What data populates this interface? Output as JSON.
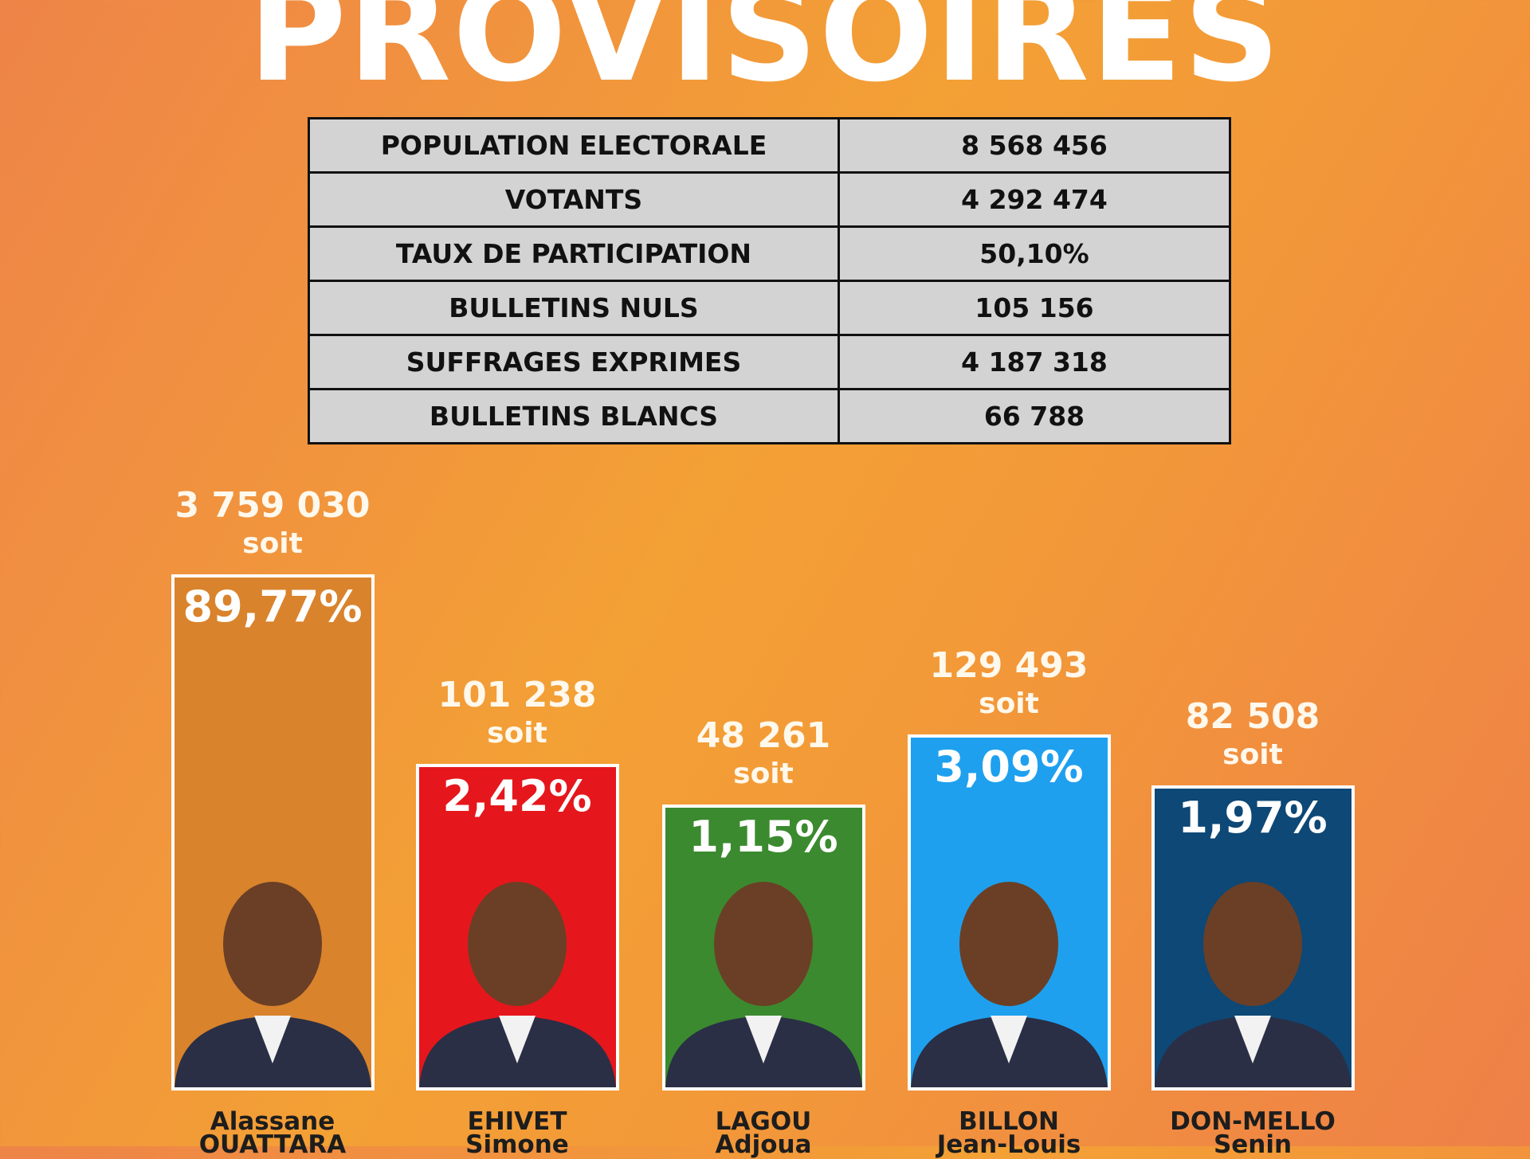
{
  "header": {
    "title": "PROVISOIRES"
  },
  "table": {
    "rows": [
      [
        "POPULATION ELECTORALE",
        "8 568 456"
      ],
      [
        "VOTANTS",
        "4 292 474"
      ],
      [
        "TAUX DE PARTICIPATION",
        "50,10%"
      ],
      [
        "BULLETINS NULS",
        "105 156"
      ],
      [
        "SUFFRAGES EXPRIMES",
        "4 187 318"
      ],
      [
        "BULLETINS BLANCS",
        "66 788"
      ]
    ]
  },
  "candidates": [
    {
      "votes": "3 759 030",
      "soit": "soit",
      "percent": "89,77%",
      "line1": "Alassane",
      "line2": "OUATTARA"
    },
    {
      "votes": "101 238",
      "soit": "soit",
      "percent": "2,42%",
      "line1": "EHIVET",
      "line2": "Simone"
    },
    {
      "votes": "48 261",
      "soit": "soit",
      "percent": "1,15%",
      "line1": "LAGOU",
      "line2": "Adjoua"
    },
    {
      "votes": "129 493",
      "soit": "soit",
      "percent": "3,09%",
      "line1": "BILLON",
      "line2": "Jean-Louis"
    },
    {
      "votes": "82 508",
      "soit": "soit",
      "percent": "1,97%",
      "line1": "DON-MELLO",
      "line2": "Senin"
    }
  ]
}
